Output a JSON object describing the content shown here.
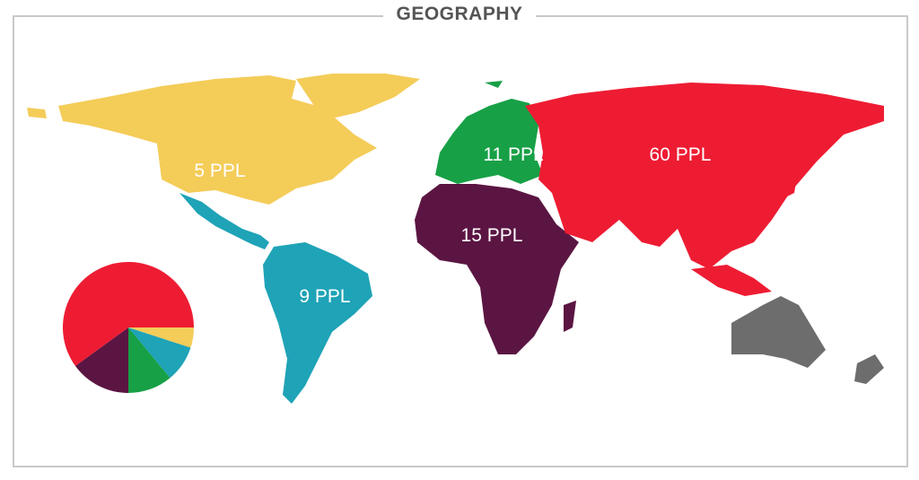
{
  "title": "GEOGRAPHY",
  "regions": [
    {
      "label": "5 PPL",
      "color": "#f4cc58"
    },
    {
      "label": "9 PPL",
      "color": "#1fa3b7"
    },
    {
      "label": "11 PPL",
      "color": "#17a046"
    },
    {
      "label": "15 PPL",
      "color": "#5b1543"
    },
    {
      "label": "60 PPL",
      "color": "#ee1c33"
    },
    {
      "label": "",
      "color": "#6d6d6d"
    }
  ],
  "chart_data": {
    "type": "pie",
    "start": "3 o'clock, clockwise",
    "values": [
      5,
      9,
      11,
      15,
      60
    ],
    "colors": [
      "#f4cc58",
      "#1fa3b7",
      "#17a046",
      "#5b1543",
      "#ee1c33"
    ]
  }
}
